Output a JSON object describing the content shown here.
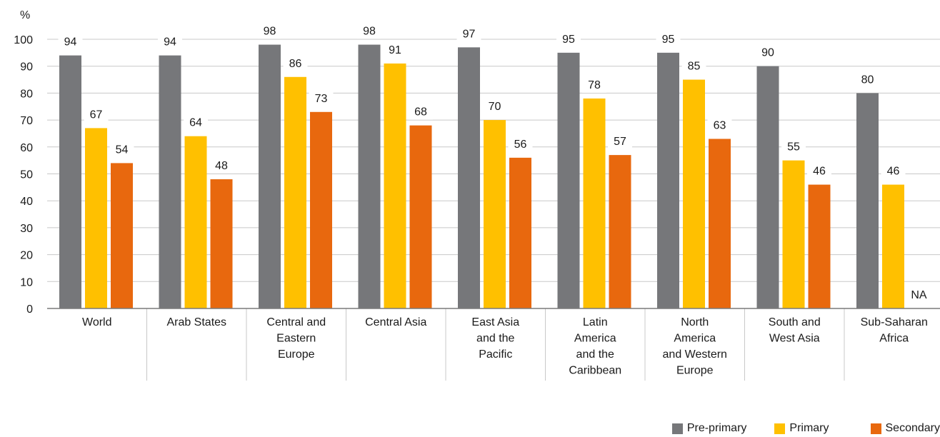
{
  "chart_data": {
    "type": "bar",
    "ylabel": "%",
    "ylim": [
      0,
      100
    ],
    "yticks": [
      0,
      10,
      20,
      30,
      40,
      50,
      60,
      70,
      80,
      90,
      100
    ],
    "categories": [
      [
        "World"
      ],
      [
        "Arab States"
      ],
      [
        "Central and",
        "Eastern",
        "Europe"
      ],
      [
        "Central Asia"
      ],
      [
        "East Asia",
        "and the",
        "Pacific"
      ],
      [
        "Latin",
        "America",
        "and the",
        "Caribbean"
      ],
      [
        "North",
        "America",
        "and Western",
        "Europe"
      ],
      [
        "South and",
        "West Asia"
      ],
      [
        "Sub-Saharan",
        "Africa"
      ]
    ],
    "series": [
      {
        "name": "Pre-primary",
        "color": "#76777a",
        "values": [
          94,
          94,
          98,
          98,
          97,
          95,
          95,
          90,
          80
        ]
      },
      {
        "name": "Primary",
        "color": "#ffc000",
        "values": [
          67,
          64,
          86,
          91,
          70,
          78,
          85,
          55,
          46
        ]
      },
      {
        "name": "Secondary",
        "color": "#e8680e",
        "values": [
          54,
          48,
          73,
          68,
          56,
          57,
          63,
          46,
          null
        ]
      }
    ],
    "missing_label": "NA",
    "grid": true,
    "legend_position": "bottom-right"
  }
}
